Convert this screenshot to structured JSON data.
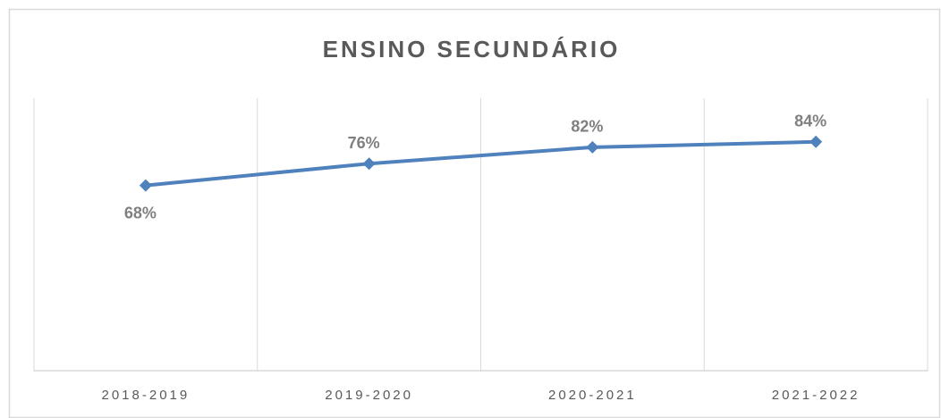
{
  "chart_data": {
    "type": "line",
    "title": "ENSINO SECUNDÁRIO",
    "categories": [
      "2018-2019",
      "2019-2020",
      "2020-2021",
      "2021-2022"
    ],
    "series": [
      {
        "color": "#4f81bd",
        "values": [
          68,
          76,
          82,
          84
        ],
        "value_labels": [
          "68%",
          "76%",
          "82%",
          "84%"
        ]
      }
    ],
    "ylim": [
      0,
      100
    ]
  }
}
